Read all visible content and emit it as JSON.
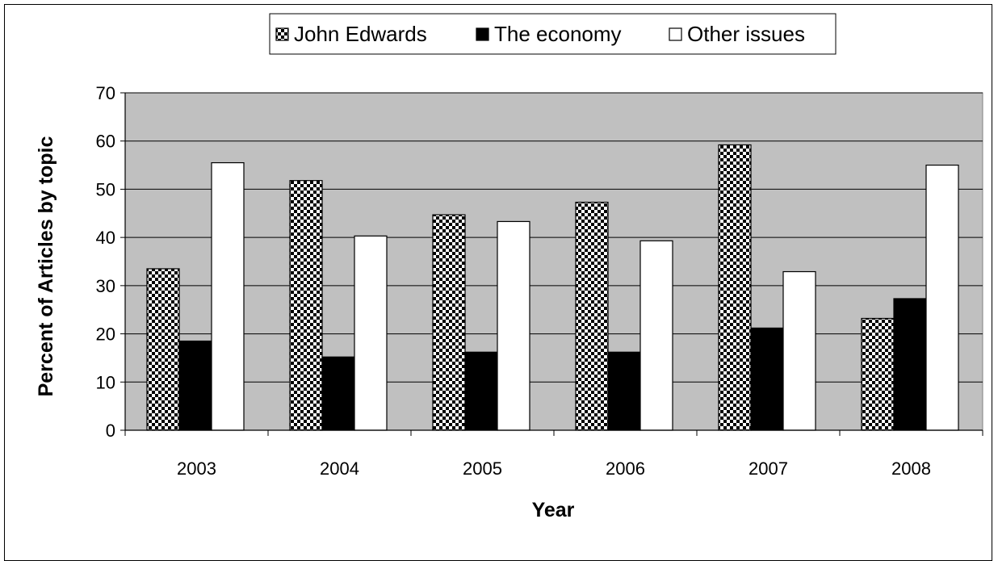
{
  "chart_data": {
    "type": "bar",
    "title": "",
    "xlabel": "Year",
    "ylabel": "Percent of Articles by topic",
    "categories": [
      "2003",
      "2004",
      "2005",
      "2006",
      "2007",
      "2008"
    ],
    "ylim": [
      0,
      70
    ],
    "yticks": [
      0,
      10,
      20,
      30,
      40,
      50,
      60,
      70
    ],
    "grid": "horizontal",
    "legend_position": "top-center",
    "plot_background": "#c0c0c0",
    "series": [
      {
        "name": "John Edwards",
        "fill": "checkerboard",
        "values": [
          33.5,
          51.8,
          44.7,
          47.3,
          59.2,
          23.2
        ]
      },
      {
        "name": "The economy",
        "fill": "#000000",
        "values": [
          18.5,
          15.2,
          16.2,
          16.2,
          21.2,
          27.3
        ]
      },
      {
        "name": "Other issues",
        "fill": "#ffffff",
        "values": [
          55.5,
          40.3,
          43.3,
          39.3,
          32.9,
          55.0
        ]
      }
    ]
  }
}
